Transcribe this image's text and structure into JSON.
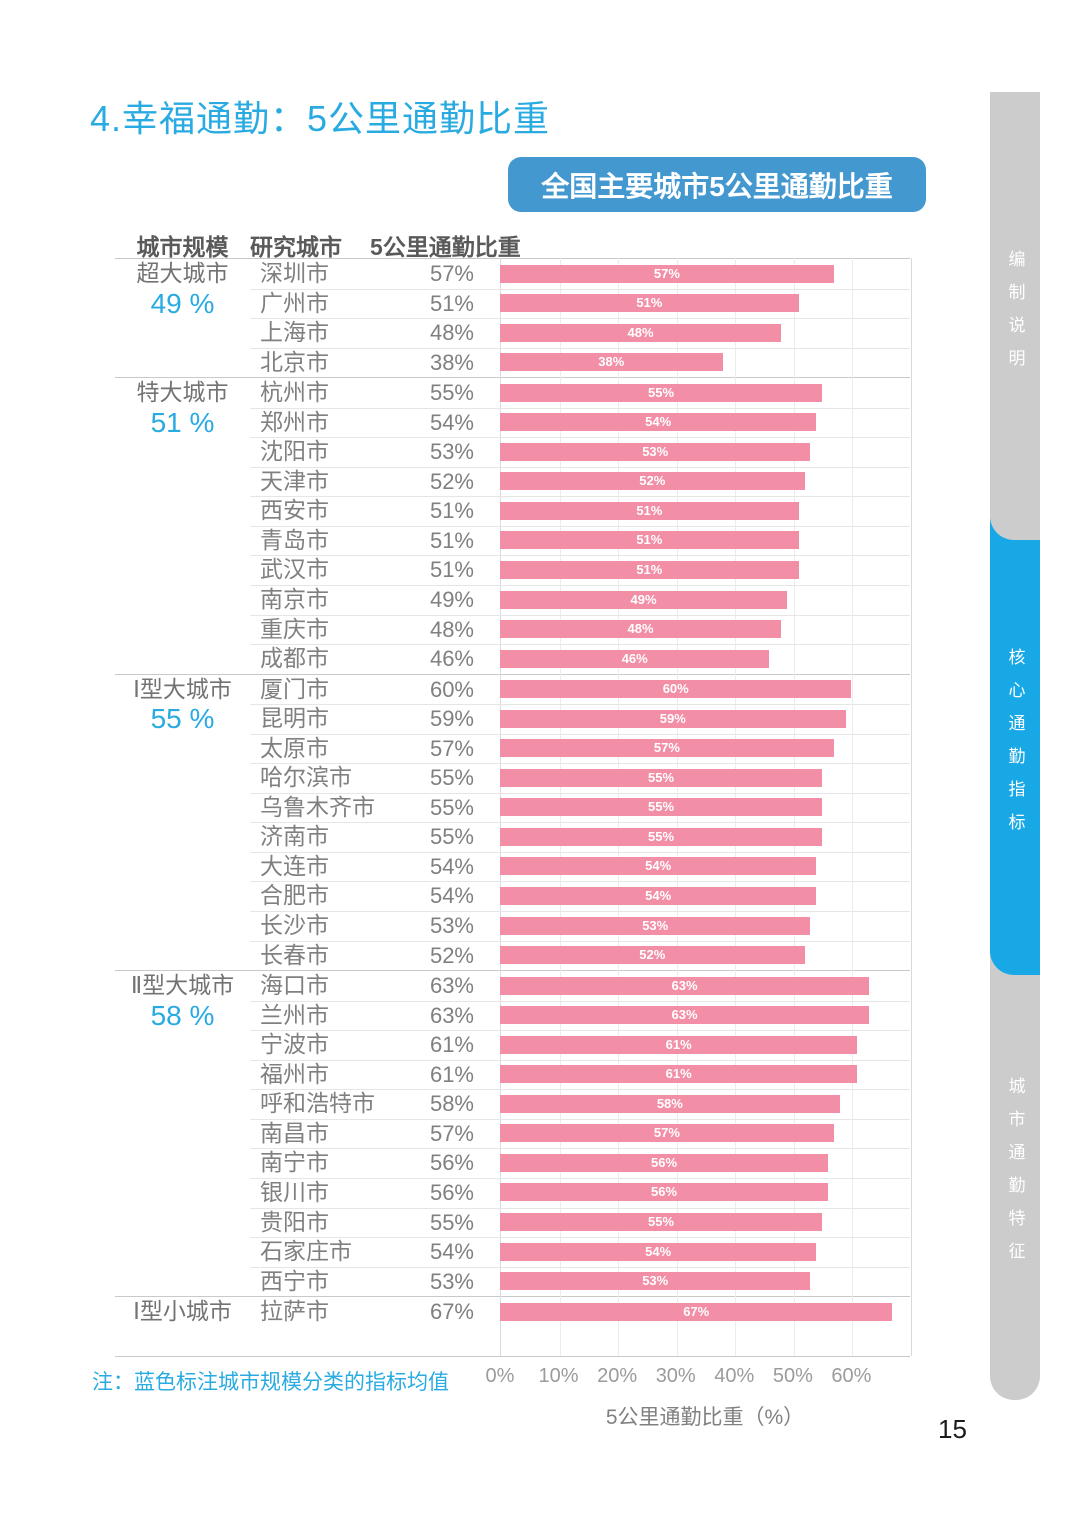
{
  "page": {
    "title": "4.幸福通勤：5公里通勤比重",
    "badge": "全国主要城市5公里通勤比重",
    "note": "注：蓝色标注城市规模分类的指标均值",
    "page_number": "15"
  },
  "table": {
    "headers": [
      "城市规模",
      "研究城市",
      "5公里通勤比重"
    ]
  },
  "sidebar": {
    "items": [
      {
        "label": "编制说明",
        "active": false
      },
      {
        "label": "核心通勤指标",
        "active": true
      },
      {
        "label": "城市通勤特征",
        "active": false
      }
    ],
    "active_color": "#18A8E6",
    "inactive_color": "#CCCCCC"
  },
  "chart_data": {
    "type": "bar",
    "orientation": "horizontal",
    "title": "全国主要城市5公里通勤比重",
    "xlabel": "5公里通勤比重（%）",
    "xlim": [
      0,
      70
    ],
    "xticks": [
      "0%",
      "10%",
      "20%",
      "30%",
      "40%",
      "50%",
      "60%"
    ],
    "bar_color": "#F28FA6",
    "mean_color": "#29ABE2",
    "grid": true,
    "groups": [
      {
        "name": "超大城市",
        "mean": "49 %",
        "cities": [
          {
            "name": "深圳市",
            "value": 57
          },
          {
            "name": "广州市",
            "value": 51
          },
          {
            "name": "上海市",
            "value": 48
          },
          {
            "name": "北京市",
            "value": 38
          }
        ]
      },
      {
        "name": "特大城市",
        "mean": "51 %",
        "cities": [
          {
            "name": "杭州市",
            "value": 55
          },
          {
            "name": "郑州市",
            "value": 54
          },
          {
            "name": "沈阳市",
            "value": 53
          },
          {
            "name": "天津市",
            "value": 52
          },
          {
            "name": "西安市",
            "value": 51
          },
          {
            "name": "青岛市",
            "value": 51
          },
          {
            "name": "武汉市",
            "value": 51
          },
          {
            "name": "南京市",
            "value": 49
          },
          {
            "name": "重庆市",
            "value": 48
          },
          {
            "name": "成都市",
            "value": 46
          }
        ]
      },
      {
        "name": "Ⅰ型大城市",
        "mean": "55 %",
        "cities": [
          {
            "name": "厦门市",
            "value": 60
          },
          {
            "name": "昆明市",
            "value": 59
          },
          {
            "name": "太原市",
            "value": 57
          },
          {
            "name": "哈尔滨市",
            "value": 55
          },
          {
            "name": "乌鲁木齐市",
            "value": 55
          },
          {
            "name": "济南市",
            "value": 55
          },
          {
            "name": "大连市",
            "value": 54
          },
          {
            "name": "合肥市",
            "value": 54
          },
          {
            "name": "长沙市",
            "value": 53
          },
          {
            "name": "长春市",
            "value": 52
          }
        ]
      },
      {
        "name": "Ⅱ型大城市",
        "mean": "58 %",
        "cities": [
          {
            "name": "海口市",
            "value": 63
          },
          {
            "name": "兰州市",
            "value": 63
          },
          {
            "name": "宁波市",
            "value": 61
          },
          {
            "name": "福州市",
            "value": 61
          },
          {
            "name": "呼和浩特市",
            "value": 58
          },
          {
            "name": "南昌市",
            "value": 57
          },
          {
            "name": "南宁市",
            "value": 56
          },
          {
            "name": "银川市",
            "value": 56
          },
          {
            "name": "贵阳市",
            "value": 55
          },
          {
            "name": "石家庄市",
            "value": 54
          },
          {
            "name": "西宁市",
            "value": 53
          }
        ]
      },
      {
        "name": "Ⅰ型小城市",
        "mean": "",
        "cities": [
          {
            "name": "拉萨市",
            "value": 67
          }
        ]
      }
    ]
  }
}
